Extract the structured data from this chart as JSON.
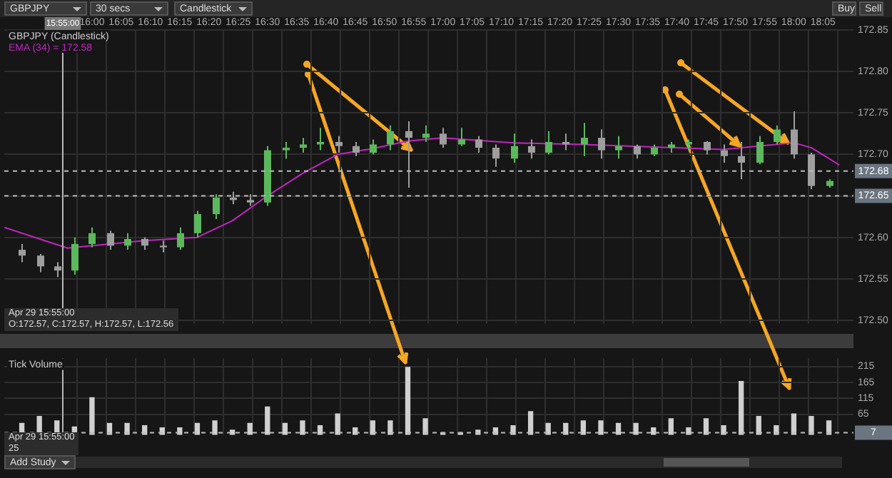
{
  "chart_data": [
    {
      "type": "candlestick",
      "title": "GBPJPY (Candlestick)",
      "x": [
        15.8,
        15.85,
        15.9,
        15.95,
        16.0,
        16.05,
        16.1,
        16.15,
        16.2,
        16.25,
        16.3,
        16.35,
        16.4,
        16.45,
        16.5,
        16.55,
        16.6,
        16.65,
        16.7,
        16.75,
        16.8,
        16.85,
        16.9,
        16.95,
        17.0,
        17.05,
        17.1,
        17.15,
        17.2,
        17.25,
        17.3,
        17.35,
        17.4,
        17.45,
        17.5,
        17.55,
        17.6,
        17.65,
        17.7,
        17.75,
        17.8,
        17.85,
        17.9,
        17.95,
        18.0,
        18.05,
        18.1
      ],
      "ohlc": [
        [
          172.585,
          172.592,
          172.57,
          172.578
        ],
        [
          172.578,
          172.58,
          172.558,
          172.565
        ],
        [
          172.565,
          172.57,
          172.552,
          172.56
        ],
        [
          172.56,
          172.6,
          172.555,
          172.592
        ],
        [
          172.592,
          172.612,
          172.588,
          172.605
        ],
        [
          172.605,
          172.608,
          172.585,
          172.59
        ],
        [
          172.59,
          172.605,
          172.585,
          172.598
        ],
        [
          172.598,
          172.6,
          172.585,
          172.59
        ],
        [
          172.59,
          172.596,
          172.582,
          172.588
        ],
        [
          172.588,
          172.612,
          172.585,
          172.605
        ],
        [
          172.605,
          172.632,
          172.6,
          172.628
        ],
        [
          172.628,
          172.652,
          172.622,
          172.648
        ],
        [
          172.648,
          172.655,
          172.64,
          172.645
        ],
        [
          172.645,
          172.652,
          172.638,
          172.642
        ],
        [
          172.642,
          172.71,
          172.638,
          172.705
        ],
        [
          172.705,
          172.715,
          172.695,
          172.708
        ],
        [
          172.708,
          172.72,
          172.702,
          172.712
        ],
        [
          172.712,
          172.732,
          172.705,
          172.715
        ],
        [
          172.715,
          172.722,
          172.702,
          172.71
        ],
        [
          172.71,
          172.715,
          172.698,
          172.702
        ],
        [
          172.702,
          172.718,
          172.7,
          172.712
        ],
        [
          172.712,
          172.735,
          172.705,
          172.728
        ],
        [
          172.728,
          172.74,
          172.66,
          172.72
        ],
        [
          172.72,
          172.735,
          172.715,
          172.725
        ],
        [
          172.725,
          172.732,
          172.708,
          172.712
        ],
        [
          172.712,
          172.732,
          172.71,
          172.718
        ],
        [
          172.718,
          172.722,
          172.702,
          172.708
        ],
        [
          172.708,
          172.712,
          172.685,
          172.695
        ],
        [
          172.695,
          172.725,
          172.69,
          172.71
        ],
        [
          172.71,
          172.718,
          172.695,
          172.702
        ],
        [
          172.702,
          172.728,
          172.7,
          172.715
        ],
        [
          172.715,
          172.725,
          172.705,
          172.712
        ],
        [
          172.712,
          172.738,
          172.698,
          172.72
        ],
        [
          172.72,
          172.73,
          172.695,
          172.705
        ],
        [
          172.705,
          172.722,
          172.695,
          172.71
        ],
        [
          172.71,
          172.712,
          172.695,
          172.7
        ],
        [
          172.7,
          172.712,
          172.698,
          172.708
        ],
        [
          172.708,
          172.715,
          172.702,
          172.712
        ],
        [
          172.712,
          172.718,
          172.705,
          172.715
        ],
        [
          172.715,
          172.716,
          172.7,
          172.705
        ],
        [
          172.705,
          172.712,
          172.69,
          172.698
        ],
        [
          172.698,
          172.715,
          172.67,
          172.69
        ],
        [
          172.69,
          172.722,
          172.688,
          172.715
        ],
        [
          172.715,
          172.735,
          172.712,
          172.73
        ],
        [
          172.73,
          172.752,
          172.695,
          172.7
        ],
        [
          172.7,
          172.702,
          172.658,
          172.662
        ],
        [
          172.662,
          172.67,
          172.66,
          172.668
        ]
      ],
      "colors": [
        "#9e9e9e",
        "#9e9e9e",
        "#9e9e9e",
        "#5cb85c",
        "#5cb85c",
        "#9e9e9e",
        "#5cb85c",
        "#9e9e9e",
        "#9e9e9e",
        "#5cb85c",
        "#5cb85c",
        "#5cb85c",
        "#9e9e9e",
        "#9e9e9e",
        "#5cb85c",
        "#5cb85c",
        "#5cb85c",
        "#5cb85c",
        "#9e9e9e",
        "#9e9e9e",
        "#5cb85c",
        "#5cb85c",
        "#9e9e9e",
        "#5cb85c",
        "#9e9e9e",
        "#5cb85c",
        "#9e9e9e",
        "#9e9e9e",
        "#5cb85c",
        "#9e9e9e",
        "#5cb85c",
        "#9e9e9e",
        "#5cb85c",
        "#9e9e9e",
        "#5cb85c",
        "#9e9e9e",
        "#5cb85c",
        "#5cb85c",
        "#5cb85c",
        "#9e9e9e",
        "#9e9e9e",
        "#9e9e9e",
        "#5cb85c",
        "#5cb85c",
        "#9e9e9e",
        "#9e9e9e",
        "#5cb85c"
      ],
      "series": [
        {
          "type": "line",
          "name": "EMA (34) = 172.58",
          "color": "#c026c0",
          "x": [
            15.75,
            15.93,
            16.15,
            16.3,
            16.4,
            16.5,
            16.6,
            16.7,
            16.8,
            16.9,
            17.0,
            17.2,
            17.4,
            17.6,
            17.8,
            17.9,
            18.0,
            18.05,
            18.1,
            18.13
          ],
          "values": [
            172.612,
            172.587,
            172.596,
            172.6,
            172.62,
            172.65,
            172.677,
            172.7,
            172.707,
            172.716,
            172.72,
            172.714,
            172.712,
            172.709,
            172.706,
            172.71,
            172.714,
            172.708,
            172.695,
            172.687
          ]
        }
      ],
      "xlim": [
        15.75,
        18.17
      ],
      "xticks": [
        {
          "value": 16,
          "label": "16:00"
        },
        {
          "value": 16.0833,
          "label": "16:05"
        },
        {
          "value": 16.1667,
          "label": "16:10"
        },
        {
          "value": 16.25,
          "label": "16:15"
        },
        {
          "value": 16.3333,
          "label": "16:20"
        },
        {
          "value": 16.4167,
          "label": "16:25"
        },
        {
          "value": 16.5,
          "label": "16:30"
        },
        {
          "value": 16.5833,
          "label": "16:35"
        },
        {
          "value": 16.6667,
          "label": "16:40"
        },
        {
          "value": 16.75,
          "label": "16:45"
        },
        {
          "value": 16.8333,
          "label": "16:50"
        },
        {
          "value": 16.9167,
          "label": "16:55"
        },
        {
          "value": 17,
          "label": "17:00"
        },
        {
          "value": 17.0833,
          "label": "17:05"
        },
        {
          "value": 17.1667,
          "label": "17:10"
        },
        {
          "value": 17.25,
          "label": "17:15"
        },
        {
          "value": 17.3333,
          "label": "17:20"
        },
        {
          "value": 17.4167,
          "label": "17:25"
        },
        {
          "value": 17.5,
          "label": "17:30"
        },
        {
          "value": 17.5833,
          "label": "17:35"
        },
        {
          "value": 17.6667,
          "label": "17:40"
        },
        {
          "value": 17.75,
          "label": "17:45"
        },
        {
          "value": 17.8333,
          "label": "17:50"
        },
        {
          "value": 17.9167,
          "label": "17:55"
        },
        {
          "value": 18,
          "label": "18:00"
        },
        {
          "value": 18.0833,
          "label": "18:05"
        }
      ],
      "ylim": [
        172.496,
        172.85
      ],
      "yticks": [
        {
          "value": 172.5,
          "label": "172.50"
        },
        172.55,
        {
          "value": 172.6,
          "label": "172.60"
        },
        172.65,
        {
          "value": 172.7,
          "label": "172.70"
        },
        172.75,
        {
          "value": 172.8,
          "label": "172.80"
        },
        172.85
      ],
      "grid": true,
      "legend": "top left",
      "marker": "none",
      "ref_lines": [
        {
          "axis": "y",
          "value": 172.68,
          "label": "172.68",
          "line_style": "dashed"
        },
        {
          "axis": "y",
          "value": 172.65,
          "label": "172.65",
          "line_style": "dashed"
        },
        {
          "axis": "x",
          "value": 15.9167
        }
      ],
      "annotations": [
        "GBPJPY",
        "30 secs",
        "Candlestick",
        "Buy",
        "Sell",
        "Apr 29 15:55:00",
        "O:172.57, C:172.57, H:172.57, L:172.56",
        "15:55:00"
      ]
    },
    {
      "type": "bar",
      "title": "Tick Volume",
      "x": [
        15.8,
        15.85,
        15.9,
        15.95,
        16.0,
        16.05,
        16.1,
        16.15,
        16.2,
        16.25,
        16.3,
        16.35,
        16.4,
        16.45,
        16.5,
        16.55,
        16.6,
        16.65,
        16.7,
        16.75,
        16.8,
        16.85,
        16.9,
        16.95,
        17.0,
        17.05,
        17.1,
        17.15,
        17.2,
        17.25,
        17.3,
        17.35,
        17.4,
        17.45,
        17.5,
        17.55,
        17.6,
        17.65,
        17.7,
        17.75,
        17.8,
        17.85,
        17.9,
        17.95,
        18.0,
        18.05,
        18.1
      ],
      "values": [
        36,
        58,
        44,
        25,
        117,
        36,
        36,
        29,
        22,
        22,
        36,
        44,
        15,
        36,
        88,
        36,
        44,
        29,
        66,
        22,
        44,
        44,
        212,
        51,
        7,
        7,
        15,
        22,
        29,
        73,
        36,
        36,
        44,
        44,
        36,
        36,
        22,
        51,
        22,
        51,
        29,
        168,
        58,
        29,
        66,
        58,
        44
      ],
      "color": "#d0d0d0",
      "xlim": [
        15.75,
        18.17
      ],
      "xticks": [
        {
          "value": 16,
          "label": null
        },
        {
          "value": 16.0833,
          "label": null
        },
        {
          "value": 16.1667,
          "label": null
        },
        {
          "value": 16.25,
          "label": null
        },
        {
          "value": 16.3333,
          "label": null
        },
        {
          "value": 16.4167,
          "label": null
        },
        {
          "value": 16.5,
          "label": null
        },
        {
          "value": 16.5833,
          "label": null
        },
        {
          "value": 16.6667,
          "label": null
        },
        {
          "value": 16.75,
          "label": null
        },
        {
          "value": 16.8333,
          "label": null
        },
        {
          "value": 16.9167,
          "label": null
        },
        {
          "value": 17,
          "label": null
        },
        {
          "value": 17.0833,
          "label": null
        },
        {
          "value": 17.1667,
          "label": null
        },
        {
          "value": 17.25,
          "label": null
        },
        {
          "value": 17.3333,
          "label": null
        },
        {
          "value": 17.4167,
          "label": null
        },
        {
          "value": 17.5,
          "label": null
        },
        {
          "value": 17.5833,
          "label": null
        },
        {
          "value": 17.6667,
          "label": null
        },
        {
          "value": 17.75,
          "label": null
        },
        {
          "value": 17.8333,
          "label": null
        },
        {
          "value": 17.9167,
          "label": null
        },
        {
          "value": 18,
          "label": null
        },
        {
          "value": 18.0833,
          "label": null
        }
      ],
      "ylim": [
        0,
        240
      ],
      "yticks": [
        65,
        115,
        165,
        215
      ],
      "grid": true,
      "tick_labels": "y",
      "ref_lines": [
        {
          "axis": "y",
          "value": 7,
          "label": "7",
          "line_style": "dashed"
        },
        {
          "axis": "x",
          "value": 15.9167
        }
      ],
      "annotations": [
        "Apr 29 15:55:00",
        "25",
        "Add Study"
      ]
    }
  ]
}
